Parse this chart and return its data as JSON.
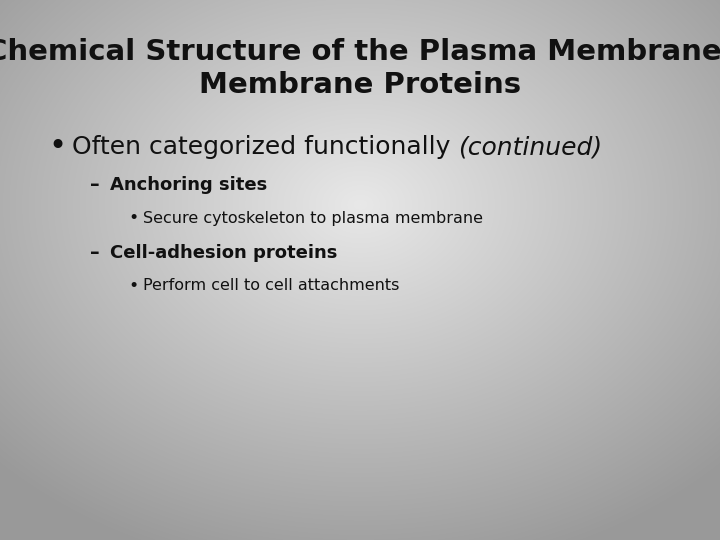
{
  "title_line1": "Chemical Structure of the Plasma Membrane:",
  "title_line2": "Membrane Proteins",
  "title_fontsize": 21,
  "title_color": "#111111",
  "bg_light": [
    0.91,
    0.91,
    0.91
  ],
  "bg_dark": [
    0.6,
    0.6,
    0.6
  ],
  "bullet1_normal": "Often categorized functionally ",
  "bullet1_italic": "(continued)",
  "bullet1_fontsize": 18,
  "sub1_text": "Anchoring sites",
  "sub1_fontsize": 13,
  "subsub1_text": "Secure cytoskeleton to plasma membrane",
  "subsub1_fontsize": 11.5,
  "sub2_text": "Cell-adhesion proteins",
  "sub2_fontsize": 13,
  "subsub2_text": "Perform cell to cell attachments",
  "subsub2_fontsize": 11.5,
  "text_color": "#111111",
  "fig_width": 7.2,
  "fig_height": 5.4,
  "dpi": 100
}
